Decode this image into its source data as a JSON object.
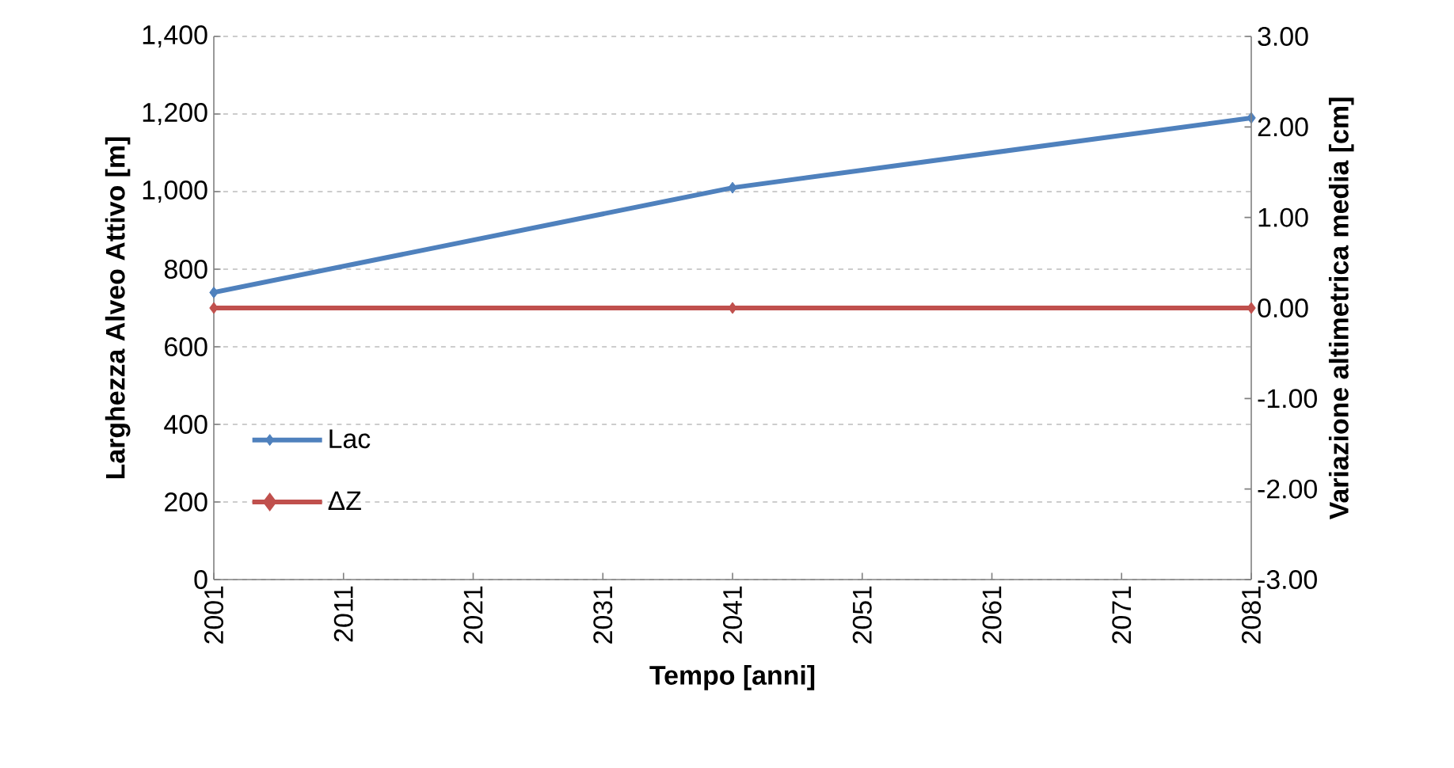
{
  "chart_data": {
    "type": "line",
    "xlabel": "Tempo [anni]",
    "ylabel": "Larghezza Alveo Attivo [m]",
    "y2label": "Variazione altimetrica media [cm]",
    "x": [
      2001,
      2041,
      2081
    ],
    "series": [
      {
        "name": "Lac",
        "color": "#4f81bd",
        "values": [
          740,
          1010,
          1190
        ]
      },
      {
        "name": "ΔZ",
        "color": "#c0504d",
        "values": [
          0,
          0,
          0
        ],
        "axis": "y2"
      }
    ],
    "xlim": [
      2001,
      2081
    ],
    "xticks": [
      2001,
      2011,
      2021,
      2031,
      2041,
      2051,
      2061,
      2071,
      2081
    ],
    "ylim": [
      0,
      1400
    ],
    "yticks": [
      {
        "value": 0,
        "label": "0"
      },
      {
        "value": 200,
        "label": "200"
      },
      {
        "value": 400,
        "label": "400"
      },
      {
        "value": 600,
        "label": "600"
      },
      {
        "value": 800,
        "label": "800"
      },
      {
        "value": 1000,
        "label": "1,000"
      },
      {
        "value": 1200,
        "label": "1,200"
      },
      {
        "value": 1400,
        "label": "1,400"
      }
    ],
    "y2lim": [
      -3,
      3
    ],
    "y2ticks": [
      {
        "value": -3,
        "label": "-3.00"
      },
      {
        "value": -2,
        "label": "-2.00"
      },
      {
        "value": -1,
        "label": "-1.00"
      },
      {
        "value": 0,
        "label": "0.00"
      },
      {
        "value": 1,
        "label": "1.00"
      },
      {
        "value": 2,
        "label": "2.00"
      },
      {
        "value": 3,
        "label": "3.00"
      }
    ],
    "grid": "y",
    "legend": "left",
    "marker": "diamond",
    "line_style": "solid"
  }
}
